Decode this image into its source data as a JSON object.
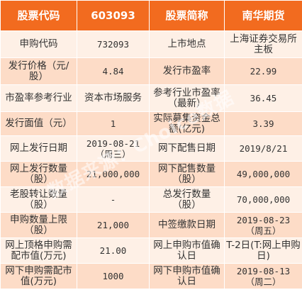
{
  "header": {
    "c1": "股票代码",
    "c2": "603093",
    "c3": "股票简称",
    "c4": "南华期货"
  },
  "rows": [
    {
      "l1": "申购代码",
      "v1": "732093",
      "l2": "上市地点",
      "v2": "上海证券交易所主板"
    },
    {
      "l1": "发行价格（元/股）",
      "v1": "4.84",
      "l2": "发行市盈率",
      "v2": "22.99"
    },
    {
      "l1": "市盈率参考行业",
      "v1": "资本市场服务",
      "l2": "参考行业市盈率（最新）",
      "v2": "36.45"
    },
    {
      "l1": "发行面值（元）",
      "v1": "1",
      "l2": "实际募集资金总额(亿元)",
      "v2": "3.39"
    },
    {
      "l1": "网上发行日期",
      "v1": "2019-08-21（周三）",
      "l2": "网下配售日期",
      "v2": "2019/8/21"
    },
    {
      "l1": "网上发行数量（股）",
      "v1": "21,000,000",
      "l2": "网下配售数量（股）",
      "v2": "49,000,000"
    },
    {
      "l1": "老股转让数量（股）",
      "v1": "-",
      "l2": "总发行数量（股）",
      "v2": "70,000,000"
    },
    {
      "l1": "申购数量上限（股）",
      "v1": "21,000",
      "l2": "中签缴款日期",
      "v2": "2019-08-23 （周五）"
    },
    {
      "l1": "网上顶格申购需配市值(万元)",
      "v1": "21.00",
      "l2": "网上申购市值确认日",
      "v2": "T-2日(T:网上申购日)"
    },
    {
      "l1": "网下申购需配市值(万元)",
      "v1": "1000",
      "l2": "网下申购市值确认日",
      "v2": "2019-08-13 （周二）"
    }
  ],
  "watermark": "数据来源：Choice数据"
}
